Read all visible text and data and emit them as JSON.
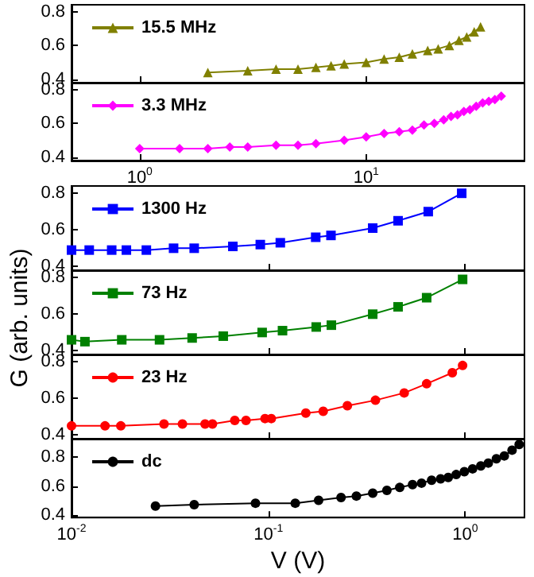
{
  "chart_data": [
    {
      "type": "line",
      "xlim": [
        0.5,
        50
      ],
      "xticks": [
        {
          "value": 1,
          "label": null
        },
        {
          "value": 10,
          "label": null
        }
      ],
      "ylim": [
        0.38,
        0.84
      ],
      "yticks": [
        0.4,
        0.6,
        0.8
      ],
      "log": "x",
      "tick_labels": "y",
      "legend": "top left",
      "grid": false,
      "marker": "triangle",
      "x": [
        2,
        3,
        4,
        5,
        6,
        7,
        8,
        10,
        12,
        14,
        16,
        18.7,
        20.8,
        23.3,
        25.7,
        27.8,
        30,
        32
      ],
      "series": [
        {
          "name": "15.5 MHz",
          "color": "#808000",
          "values": [
            0.44,
            0.45,
            0.46,
            0.46,
            0.47,
            0.48,
            0.49,
            0.5,
            0.52,
            0.53,
            0.55,
            0.57,
            0.58,
            0.6,
            0.63,
            0.65,
            0.68,
            0.71
          ]
        }
      ]
    },
    {
      "type": "line",
      "xlim": [
        0.5,
        50
      ],
      "xticks": [
        {
          "value": 1,
          "label": "10$^{0}$"
        },
        {
          "value": 10,
          "label": "10$^{1}$"
        }
      ],
      "ylim": [
        0.38,
        0.84
      ],
      "yticks": [
        0.4,
        0.6,
        0.8
      ],
      "log": "x",
      "legend": "top left",
      "grid": false,
      "marker": "diamond",
      "x": [
        1,
        1.5,
        2,
        2.5,
        3,
        4,
        5,
        6,
        8,
        10,
        12,
        14,
        16,
        18,
        20,
        22,
        23.7,
        25.3,
        27,
        28.7,
        30.6,
        32.7,
        34.8,
        37,
        39.5
      ],
      "series": [
        {
          "name": "3.3 MHz",
          "color": "#ff00ff",
          "values": [
            0.45,
            0.45,
            0.45,
            0.46,
            0.46,
            0.47,
            0.47,
            0.48,
            0.5,
            0.52,
            0.54,
            0.55,
            0.56,
            0.59,
            0.6,
            0.62,
            0.64,
            0.65,
            0.67,
            0.68,
            0.7,
            0.72,
            0.73,
            0.74,
            0.76
          ]
        }
      ]
    },
    {
      "type": "line",
      "xlim": [
        0.01,
        2
      ],
      "xticks": [
        {
          "value": 0.01,
          "label": null
        },
        {
          "value": 0.1,
          "label": null
        },
        {
          "value": 1,
          "label": null
        }
      ],
      "ylim": [
        0.38,
        0.84
      ],
      "yticks": [
        0.4,
        0.6,
        0.8
      ],
      "log": "x",
      "tick_labels": "y",
      "legend": "top left",
      "grid": false,
      "marker": "square",
      "ylabel": "G (arb. units)",
      "x": [
        0.01,
        0.0123,
        0.016,
        0.019,
        0.024,
        0.033,
        0.042,
        0.066,
        0.091,
        0.115,
        0.174,
        0.208,
        0.339,
        0.456,
        0.649,
        0.96
      ],
      "series": [
        {
          "name": "1300 Hz",
          "color": "#0000ff",
          "values": [
            0.49,
            0.49,
            0.49,
            0.49,
            0.49,
            0.5,
            0.5,
            0.51,
            0.52,
            0.53,
            0.56,
            0.57,
            0.61,
            0.65,
            0.7,
            0.8
          ]
        }
      ]
    },
    {
      "type": "line",
      "xlim": [
        0.01,
        2
      ],
      "xticks": [
        {
          "value": 0.01,
          "label": null
        },
        {
          "value": 0.1,
          "label": null
        },
        {
          "value": 1,
          "label": null
        }
      ],
      "ylim": [
        0.38,
        0.84
      ],
      "yticks": [
        0.4,
        0.6,
        0.8
      ],
      "log": "x",
      "tick_labels": "y",
      "legend": "top left",
      "grid": false,
      "marker": "square",
      "x": [
        0.01,
        0.0117,
        0.018,
        0.028,
        0.041,
        0.059,
        0.093,
        0.118,
        0.175,
        0.209,
        0.339,
        0.456,
        0.637,
        0.97
      ],
      "series": [
        {
          "name": "73 Hz",
          "color": "#008000",
          "values": [
            0.46,
            0.45,
            0.46,
            0.46,
            0.47,
            0.48,
            0.5,
            0.51,
            0.53,
            0.54,
            0.6,
            0.64,
            0.69,
            0.79
          ]
        }
      ]
    },
    {
      "type": "line",
      "xlim": [
        0.01,
        2
      ],
      "xticks": [
        {
          "value": 0.01,
          "label": null
        },
        {
          "value": 0.1,
          "label": null
        },
        {
          "value": 1,
          "label": null
        }
      ],
      "ylim": [
        0.38,
        0.84
      ],
      "yticks": [
        0.4,
        0.6,
        0.8
      ],
      "log": "x",
      "tick_labels": "y",
      "legend": "top left",
      "grid": false,
      "marker": "circle",
      "x": [
        0.01,
        0.0148,
        0.0178,
        0.0295,
        0.0366,
        0.0477,
        0.052,
        0.0675,
        0.077,
        0.0962,
        0.1035,
        0.155,
        0.19,
        0.252,
        0.35,
        0.49,
        0.637,
        0.86,
        0.97
      ],
      "series": [
        {
          "name": "23 Hz",
          "color": "#ff0000",
          "values": [
            0.45,
            0.45,
            0.45,
            0.46,
            0.46,
            0.46,
            0.46,
            0.48,
            0.48,
            0.49,
            0.49,
            0.52,
            0.53,
            0.56,
            0.59,
            0.63,
            0.68,
            0.74,
            0.78
          ]
        }
      ]
    },
    {
      "type": "line",
      "xlim": [
        0.01,
        2
      ],
      "xticks": [
        {
          "value": 0.01,
          "label": "10$^{-2}$"
        },
        {
          "value": 0.1,
          "label": "10$^{-1}$"
        },
        {
          "value": 1,
          "label": "10$^{0}$"
        }
      ],
      "ylim": [
        0.38,
        0.93
      ],
      "yticks": [
        0.4,
        0.6,
        0.8
      ],
      "log": "x",
      "legend": "top left",
      "grid": false,
      "marker": "circle",
      "xlabel": "V (V)",
      "x": [
        0.0267,
        0.042,
        0.086,
        0.137,
        0.18,
        0.234,
        0.28,
        0.339,
        0.4,
        0.465,
        0.54,
        0.6,
        0.675,
        0.75,
        0.82,
        0.9,
        0.99,
        1.09,
        1.2,
        1.31,
        1.44,
        1.58,
        1.73,
        1.88
      ],
      "series": [
        {
          "name": "dc",
          "color": "#000000",
          "values": [
            0.46,
            0.47,
            0.48,
            0.48,
            0.5,
            0.52,
            0.53,
            0.55,
            0.57,
            0.59,
            0.61,
            0.62,
            0.64,
            0.65,
            0.66,
            0.68,
            0.7,
            0.72,
            0.74,
            0.76,
            0.79,
            0.81,
            0.85,
            0.89
          ]
        }
      ]
    }
  ]
}
